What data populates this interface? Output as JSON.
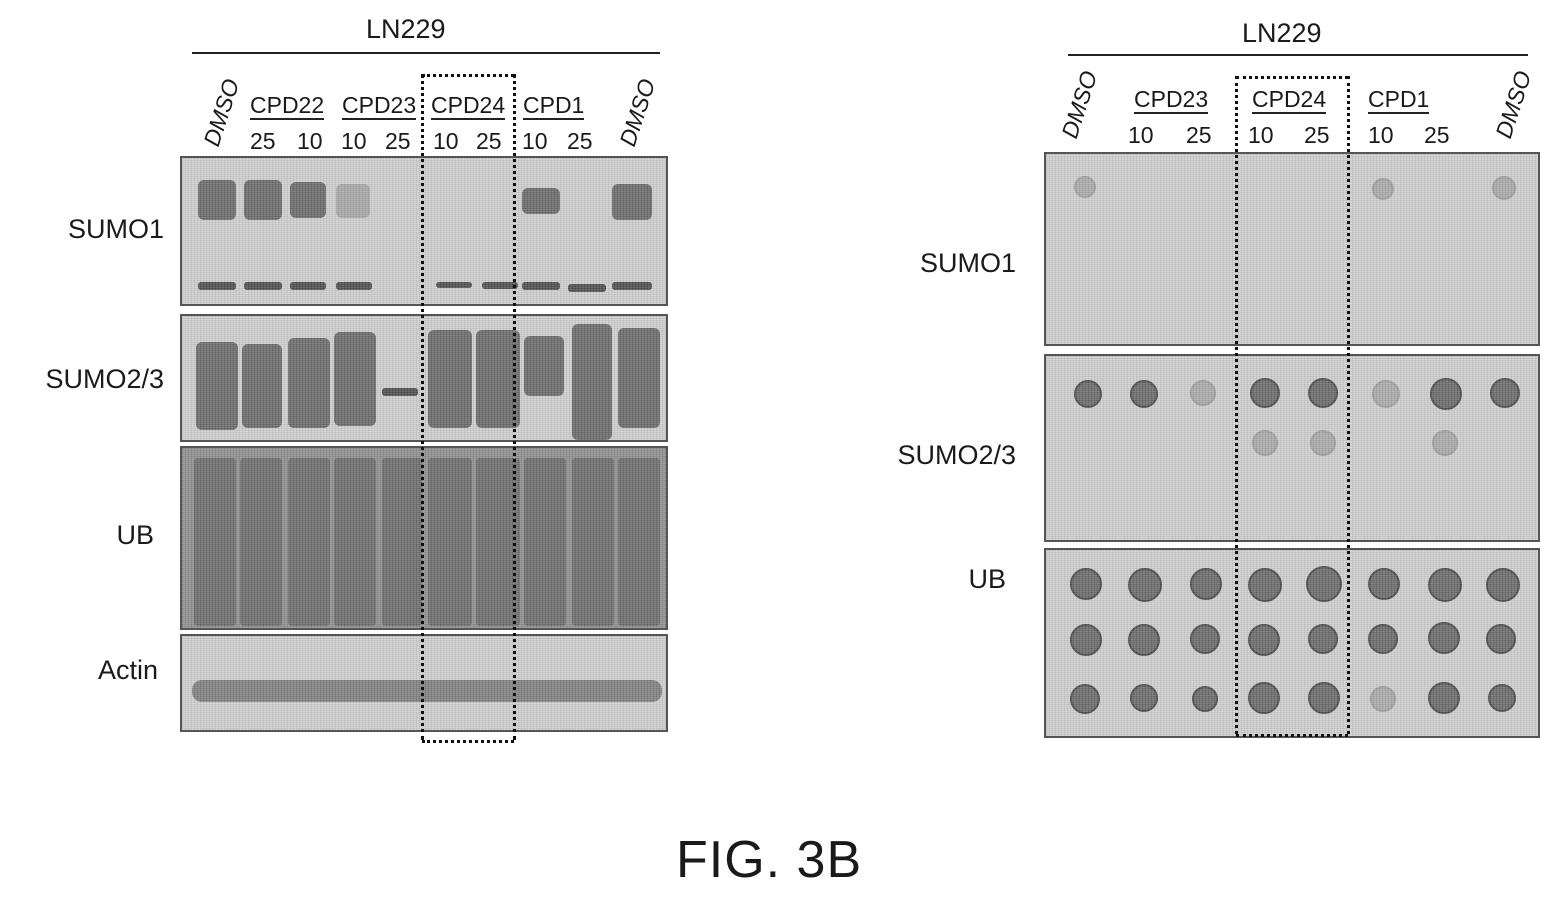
{
  "left": {
    "cell_line": "LN229",
    "lane_headers": [
      {
        "text": "DMSO",
        "rotated": true
      },
      {
        "text": "CPD22",
        "underlined": true
      },
      {
        "text": "CPD23",
        "underlined": true
      },
      {
        "text": "CPD24",
        "underlined": true
      },
      {
        "text": "CPD1",
        "underlined": true
      },
      {
        "text": "DMSO",
        "rotated": true
      }
    ],
    "doses": [
      "25",
      "10",
      "10",
      "25",
      "10",
      "25",
      "10",
      "25"
    ],
    "rows": [
      "SUMO1",
      "SUMO2/3",
      "UB",
      "Actin"
    ]
  },
  "right": {
    "cell_line": "LN229",
    "lane_headers": [
      {
        "text": "DMSO",
        "rotated": true
      },
      {
        "text": "CPD23",
        "underlined": true
      },
      {
        "text": "CPD24",
        "underlined": true
      },
      {
        "text": "CPD1",
        "underlined": true
      },
      {
        "text": "DMSO",
        "rotated": true
      }
    ],
    "doses": [
      "10",
      "25",
      "10",
      "25",
      "10",
      "25"
    ],
    "rows": [
      "SUMO1",
      "SUMO2/3",
      "UB"
    ]
  },
  "figure_label": "FIG. 3B"
}
